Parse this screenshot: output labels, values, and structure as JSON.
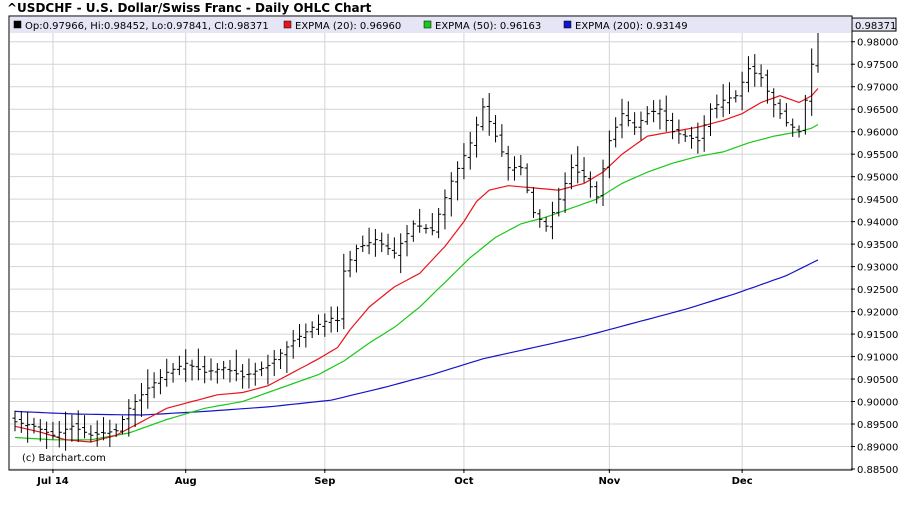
{
  "chart_data": {
    "type": "ohlc",
    "title": "^USDCHF - U.S. Dollar/Swiss Franc - Daily OHLC Chart",
    "legend": [
      {
        "text": "Op:0.97966, Hi:0.98452, Lo:0.97841, Cl:0.98371",
        "color": "#000000"
      },
      {
        "text": "EXPMA (20): 0.96960",
        "color": "#e8141c"
      },
      {
        "text": "EXPMA (50): 0.96163",
        "color": "#19c819"
      },
      {
        "text": "EXPMA (200): 0.93149",
        "color": "#1414c8"
      }
    ],
    "last_price_label": "0.98371",
    "watermark": "(c) Barchart.com",
    "y_ticks": [
      "0.88500",
      "0.89000",
      "0.89500",
      "0.90000",
      "0.90500",
      "0.91000",
      "0.91500",
      "0.92000",
      "0.92500",
      "0.93000",
      "0.93500",
      "0.94000",
      "0.94500",
      "0.95000",
      "0.95500",
      "0.96000",
      "0.96500",
      "0.97000",
      "0.97500",
      "0.98000"
    ],
    "ylim": [
      0.885,
      0.9855
    ],
    "x_labels": [
      {
        "label": "Jul 14",
        "index": 6
      },
      {
        "label": "Aug",
        "index": 27
      },
      {
        "label": "Sep",
        "index": 49
      },
      {
        "label": "Oct",
        "index": 71
      },
      {
        "label": "Nov",
        "index": 94
      },
      {
        "label": "Dec",
        "index": 115
      }
    ],
    "bar_count": 128,
    "grid": true,
    "anchors": {
      "close": [
        [
          0,
          0.8955
        ],
        [
          3,
          0.8945
        ],
        [
          6,
          0.8925
        ],
        [
          9,
          0.8945
        ],
        [
          12,
          0.8925
        ],
        [
          16,
          0.8935
        ],
        [
          18,
          0.8985
        ],
        [
          21,
          0.903
        ],
        [
          24,
          0.9065
        ],
        [
          27,
          0.9085
        ],
        [
          30,
          0.9065
        ],
        [
          33,
          0.9075
        ],
        [
          36,
          0.9055
        ],
        [
          40,
          0.908
        ],
        [
          44,
          0.9135
        ],
        [
          47,
          0.9165
        ],
        [
          50,
          0.9185
        ],
        [
          51,
          0.918
        ],
        [
          52,
          0.929
        ],
        [
          54,
          0.934
        ],
        [
          57,
          0.936
        ],
        [
          60,
          0.933
        ],
        [
          63,
          0.9395
        ],
        [
          66,
          0.938
        ],
        [
          69,
          0.949
        ],
        [
          72,
          0.9575
        ],
        [
          74,
          0.9655
        ],
        [
          76,
          0.959
        ],
        [
          78,
          0.952
        ],
        [
          80,
          0.952
        ],
        [
          82,
          0.942
        ],
        [
          84,
          0.939
        ],
        [
          86,
          0.945
        ],
        [
          88,
          0.952
        ],
        [
          90,
          0.95
        ],
        [
          92,
          0.9455
        ],
        [
          94,
          0.958
        ],
        [
          96,
          0.964
        ],
        [
          98,
          0.961
        ],
        [
          100,
          0.964
        ],
        [
          102,
          0.965
        ],
        [
          104,
          0.96
        ],
        [
          106,
          0.959
        ],
        [
          108,
          0.958
        ],
        [
          110,
          0.965
        ],
        [
          112,
          0.967
        ],
        [
          114,
          0.968
        ],
        [
          116,
          0.974
        ],
        [
          118,
          0.972
        ],
        [
          120,
          0.966
        ],
        [
          122,
          0.962
        ],
        [
          124,
          0.96
        ],
        [
          125,
          0.967
        ],
        [
          126,
          0.975
        ],
        [
          127,
          0.9837
        ]
      ],
      "ema20": [
        [
          0,
          0.8945
        ],
        [
          4,
          0.8932
        ],
        [
          8,
          0.8915
        ],
        [
          12,
          0.891
        ],
        [
          16,
          0.8925
        ],
        [
          20,
          0.8955
        ],
        [
          24,
          0.8985
        ],
        [
          28,
          0.9
        ],
        [
          32,
          0.9015
        ],
        [
          36,
          0.902
        ],
        [
          40,
          0.9035
        ],
        [
          44,
          0.9065
        ],
        [
          48,
          0.9095
        ],
        [
          51,
          0.912
        ],
        [
          53,
          0.916
        ],
        [
          56,
          0.921
        ],
        [
          60,
          0.9255
        ],
        [
          64,
          0.9285
        ],
        [
          68,
          0.9345
        ],
        [
          71,
          0.94
        ],
        [
          73,
          0.9445
        ],
        [
          75,
          0.947
        ],
        [
          78,
          0.948
        ],
        [
          82,
          0.9475
        ],
        [
          86,
          0.947
        ],
        [
          90,
          0.9485
        ],
        [
          93,
          0.951
        ],
        [
          96,
          0.955
        ],
        [
          100,
          0.959
        ],
        [
          104,
          0.96
        ],
        [
          108,
          0.961
        ],
        [
          112,
          0.9625
        ],
        [
          115,
          0.964
        ],
        [
          118,
          0.9665
        ],
        [
          121,
          0.968
        ],
        [
          124,
          0.9665
        ],
        [
          126,
          0.968
        ],
        [
          127,
          0.9696
        ]
      ],
      "ema50": [
        [
          0,
          0.892
        ],
        [
          6,
          0.8915
        ],
        [
          12,
          0.8915
        ],
        [
          18,
          0.893
        ],
        [
          24,
          0.896
        ],
        [
          30,
          0.8985
        ],
        [
          36,
          0.9
        ],
        [
          42,
          0.903
        ],
        [
          48,
          0.906
        ],
        [
          52,
          0.909
        ],
        [
          56,
          0.913
        ],
        [
          60,
          0.9165
        ],
        [
          64,
          0.921
        ],
        [
          68,
          0.9265
        ],
        [
          72,
          0.932
        ],
        [
          76,
          0.9365
        ],
        [
          80,
          0.9395
        ],
        [
          84,
          0.941
        ],
        [
          88,
          0.943
        ],
        [
          92,
          0.945
        ],
        [
          96,
          0.9485
        ],
        [
          100,
          0.951
        ],
        [
          104,
          0.953
        ],
        [
          108,
          0.9545
        ],
        [
          112,
          0.9555
        ],
        [
          116,
          0.9575
        ],
        [
          120,
          0.959
        ],
        [
          124,
          0.96
        ],
        [
          126,
          0.9608
        ],
        [
          127,
          0.9616
        ]
      ],
      "ema200": [
        [
          0,
          0.8978
        ],
        [
          10,
          0.8972
        ],
        [
          20,
          0.897
        ],
        [
          30,
          0.8978
        ],
        [
          40,
          0.8988
        ],
        [
          50,
          0.9003
        ],
        [
          58,
          0.903
        ],
        [
          66,
          0.906
        ],
        [
          74,
          0.9095
        ],
        [
          82,
          0.912
        ],
        [
          90,
          0.9145
        ],
        [
          98,
          0.9175
        ],
        [
          106,
          0.9205
        ],
        [
          114,
          0.924
        ],
        [
          122,
          0.928
        ],
        [
          127,
          0.9315
        ]
      ]
    }
  }
}
